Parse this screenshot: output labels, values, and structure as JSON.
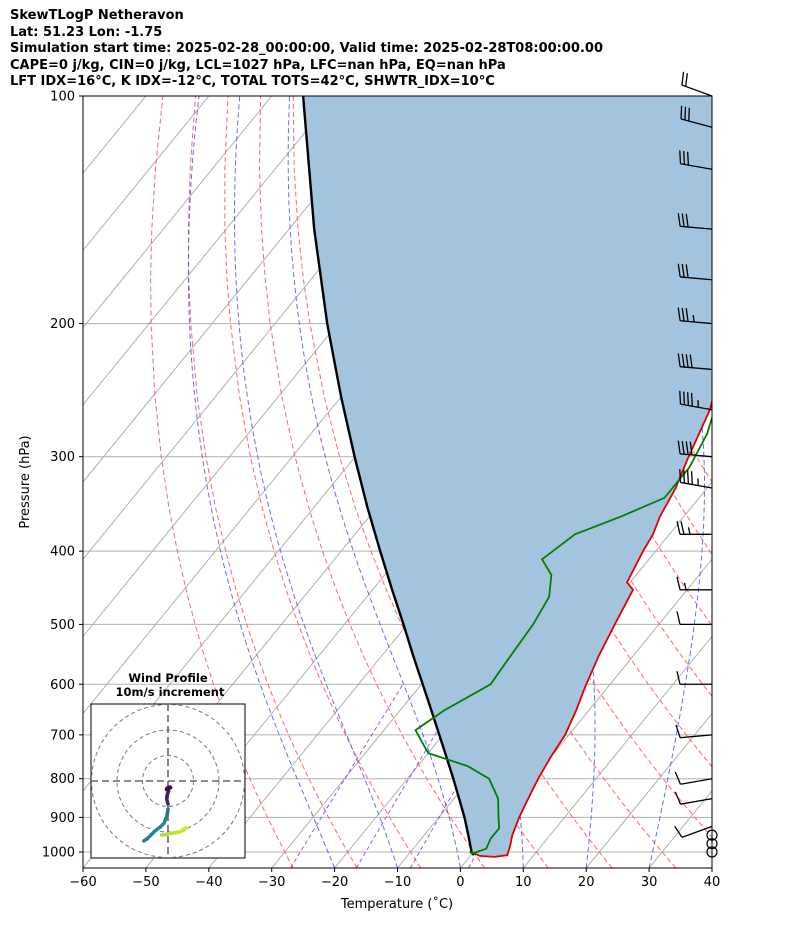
{
  "title_lines": [
    "SkewTLogP Netheravon",
    "Lat: 51.23   Lon: -1.75",
    "Simulation start time: 2025-02-28_00:00:00, Valid time: 2025-02-28T08:00:00.00",
    "CAPE=0 j/kg, CIN=0 j/kg, LCL=1027 hPa, LFC=nan hPa, EQ=nan hPa",
    "LFT IDX=16°C, K IDX=-12°C, TOTAL TOTS=42°C, SHWTR_IDX=10°C"
  ],
  "chart_data": {
    "type": "skew-t",
    "xlabel": "Temperature (˚C)",
    "ylabel": "Pressure (hPa)",
    "xlim": [
      -60,
      40
    ],
    "ylim": [
      1050,
      100
    ],
    "xticks": [
      "−60",
      "−50",
      "−40",
      "−30",
      "−20",
      "−10",
      "0",
      "10",
      "20",
      "30",
      "40"
    ],
    "yticks": [
      "100",
      "200",
      "300",
      "400",
      "500",
      "600",
      "700",
      "800",
      "900",
      "1000"
    ],
    "grid": true,
    "temperature": {
      "color": "#e00000",
      "points": [
        [
          1000,
          -0.3
        ],
        [
          1012,
          1.5
        ],
        [
          1015,
          4.0
        ],
        [
          1010,
          5.8
        ],
        [
          980,
          5.0
        ],
        [
          950,
          4.0
        ],
        [
          900,
          2.8
        ],
        [
          850,
          1.8
        ],
        [
          800,
          0.8
        ],
        [
          750,
          0.0
        ],
        [
          700,
          -0.6
        ],
        [
          650,
          -2.0
        ],
        [
          600,
          -3.8
        ],
        [
          550,
          -5.5
        ],
        [
          500,
          -7.0
        ],
        [
          450,
          -8.6
        ],
        [
          440,
          -10.5
        ],
        [
          400,
          -12.0
        ],
        [
          380,
          -12.6
        ],
        [
          360,
          -13.8
        ],
        [
          330,
          -15.0
        ],
        [
          300,
          -17.0
        ],
        [
          260,
          -19.7
        ],
        [
          240,
          -22.0
        ],
        [
          220,
          -23.2
        ],
        [
          205,
          -23.5
        ],
        [
          190,
          -23.2
        ],
        [
          180,
          -23.5
        ],
        [
          170,
          -24.0
        ],
        [
          160,
          -25.5
        ],
        [
          150,
          -27.0
        ],
        [
          140,
          -29.0
        ],
        [
          130,
          -31.0
        ],
        [
          120,
          -34.0
        ],
        [
          110,
          -38.0
        ],
        [
          100,
          -42.0
        ]
      ]
    },
    "dewpoint": {
      "color": "#008000",
      "points": [
        [
          1000,
          -0.6
        ],
        [
          1005,
          0.0
        ],
        [
          990,
          1.6
        ],
        [
          960,
          1.0
        ],
        [
          930,
          1.0
        ],
        [
          900,
          -0.5
        ],
        [
          850,
          -3.0
        ],
        [
          800,
          -7.0
        ],
        [
          770,
          -12.0
        ],
        [
          740,
          -20.0
        ],
        [
          690,
          -25.0
        ],
        [
          650,
          -23.0
        ],
        [
          600,
          -19.0
        ],
        [
          550,
          -19.5
        ],
        [
          500,
          -20.0
        ],
        [
          460,
          -21.0
        ],
        [
          430,
          -23.5
        ],
        [
          410,
          -27.0
        ],
        [
          380,
          -25.0
        ],
        [
          360,
          -20.0
        ],
        [
          340,
          -15.5
        ],
        [
          310,
          -15.5
        ],
        [
          280,
          -17.0
        ],
        [
          250,
          -20.0
        ],
        [
          230,
          -23.0
        ],
        [
          210,
          -23.5
        ],
        [
          195,
          -24.5
        ],
        [
          185,
          -27.0
        ],
        [
          172,
          -29.0
        ],
        [
          160,
          -30.5
        ],
        [
          145,
          -31.0
        ],
        [
          130,
          -32.0
        ],
        [
          115,
          -34.0
        ],
        [
          100,
          -36.0
        ]
      ]
    },
    "parcel": {
      "color": "#000000",
      "points": [
        [
          1010,
          0.5
        ],
        [
          1000,
          -0.3
        ],
        [
          950,
          -3.0
        ],
        [
          900,
          -5.9
        ],
        [
          850,
          -9.2
        ],
        [
          800,
          -12.7
        ],
        [
          750,
          -16.5
        ],
        [
          700,
          -20.6
        ],
        [
          650,
          -25.0
        ],
        [
          600,
          -29.8
        ],
        [
          550,
          -35.0
        ],
        [
          500,
          -40.6
        ],
        [
          450,
          -46.9
        ],
        [
          400,
          -53.8
        ],
        [
          350,
          -61.5
        ],
        [
          300,
          -70.1
        ],
        [
          250,
          -80.0
        ],
        [
          200,
          -91.7
        ],
        [
          150,
          -106.0
        ],
        [
          100,
          -125.0
        ]
      ]
    },
    "shading_color": "#a3c4de",
    "wind_barbs": [
      {
        "p": 1000,
        "speed_kt": 0,
        "dir": 0
      },
      {
        "p": 975,
        "speed_kt": 0,
        "dir": 0
      },
      {
        "p": 950,
        "speed_kt": 0,
        "dir": 0
      },
      {
        "p": 925,
        "speed_kt": 10,
        "dir": 250
      },
      {
        "p": 850,
        "speed_kt": 10,
        "dir": 260
      },
      {
        "p": 800,
        "speed_kt": 10,
        "dir": 260
      },
      {
        "p": 700,
        "speed_kt": 10,
        "dir": 265
      },
      {
        "p": 600,
        "speed_kt": 10,
        "dir": 270
      },
      {
        "p": 500,
        "speed_kt": 10,
        "dir": 270
      },
      {
        "p": 450,
        "speed_kt": 15,
        "dir": 270
      },
      {
        "p": 380,
        "speed_kt": 25,
        "dir": 270
      },
      {
        "p": 330,
        "speed_kt": 45,
        "dir": 280
      },
      {
        "p": 300,
        "speed_kt": 40,
        "dir": 275
      },
      {
        "p": 260,
        "speed_kt": 45,
        "dir": 280
      },
      {
        "p": 230,
        "speed_kt": 40,
        "dir": 275
      },
      {
        "p": 200,
        "speed_kt": 35,
        "dir": 275
      },
      {
        "p": 175,
        "speed_kt": 30,
        "dir": 275
      },
      {
        "p": 150,
        "speed_kt": 30,
        "dir": 275
      },
      {
        "p": 125,
        "speed_kt": 30,
        "dir": 280
      },
      {
        "p": 110,
        "speed_kt": 30,
        "dir": 285
      },
      {
        "p": 100,
        "speed_kt": 20,
        "dir": 290
      }
    ],
    "hodograph": {
      "title": "Wind Profile",
      "subtitle": "10m/s increment",
      "points": [
        [
          2.5,
          -6.2
        ],
        [
          1.8,
          -6.5
        ],
        [
          1.0,
          -6.6
        ],
        [
          0.3,
          -6.7
        ],
        [
          -0.5,
          -6.8
        ],
        [
          -1.0,
          -6.9
        ],
        [
          -2.0,
          -7.1
        ],
        [
          -3.0,
          -7.6
        ],
        [
          -4.0,
          -8.4
        ],
        [
          -5.0,
          -9.0
        ],
        [
          -6.0,
          -10.0
        ],
        [
          -7.0,
          -11.0
        ],
        [
          -8.0,
          -12.0
        ],
        [
          -9.0,
          -13.0
        ],
        [
          -10.0,
          -14.0
        ],
        [
          -11.0,
          -15.0
        ],
        [
          -12.0,
          -16.0
        ],
        [
          -13.0,
          -17.2
        ],
        [
          -14.0,
          -18.5
        ]
      ],
      "upper_points": [
        [
          0.0,
          -9.0
        ],
        [
          -0.3,
          -8.0
        ],
        [
          -0.5,
          -7.0
        ],
        [
          -0.4,
          -6.0
        ],
        [
          -0.2,
          -5.0
        ],
        [
          0.2,
          -4.0
        ],
        [
          0.0,
          -3.2
        ],
        [
          -0.6,
          -3.3
        ],
        [
          -0.5,
          -3.0
        ],
        [
          0.0,
          -2.6
        ],
        [
          0.8,
          -2.4
        ],
        [
          1.0,
          -2.6
        ],
        [
          0.5,
          -2.8
        ]
      ]
    }
  }
}
